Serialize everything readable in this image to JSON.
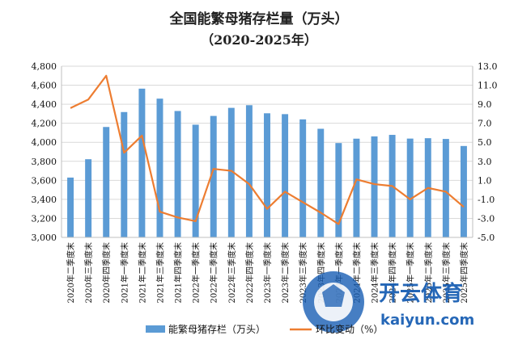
{
  "chart_data": {
    "type": "bar",
    "title": "全国能繁母猪存栏量（万头）",
    "subtitle": "（2020-2025年）",
    "categories": [
      "2020年二季度末",
      "2020年三季度末",
      "2020年四季度末",
      "2021年一季度末",
      "2021年二季度末",
      "2021年三季度末",
      "2021年四季度末",
      "2022年一季度末",
      "2022年二季度末",
      "2022年三季度末",
      "2022年四季度末",
      "2023年一季度末",
      "2023年二季度末",
      "2023年三季度末",
      "2023年四季度末",
      "2024年一季度末",
      "2024年二季度末",
      "2024年三季度末",
      "2024年四季度末",
      "2025年一季度末",
      "2025年二季度末",
      "2025年三季度末",
      "2025年四季度末"
    ],
    "series": [
      {
        "name": "能繁母猪存栏（万头）",
        "type": "bar",
        "axis": "left",
        "color": "#5B9BD5",
        "values": [
          3629,
          3822,
          4161,
          4318,
          4564,
          4459,
          4329,
          4185,
          4277,
          4362,
          4390,
          4305,
          4296,
          4241,
          4142,
          3992,
          4038,
          4062,
          4078,
          4039,
          4043,
          4035,
          3961
        ]
      },
      {
        "name": "环比变动（%）",
        "type": "line",
        "axis": "right",
        "color": "#ED7D31",
        "values": [
          8.6,
          9.5,
          12.0,
          3.9,
          5.7,
          -2.3,
          -2.9,
          -3.3,
          2.2,
          2.0,
          0.6,
          -2.0,
          -0.2,
          -1.3,
          -2.4,
          -3.6,
          1.1,
          0.6,
          0.4,
          -1.0,
          0.2,
          -0.2,
          -1.8
        ]
      }
    ],
    "y_left": {
      "min": 3000,
      "max": 4800,
      "step": 200,
      "ticks": [
        "3,000",
        "3,200",
        "3,400",
        "3,600",
        "3,800",
        "4,000",
        "4,200",
        "4,400",
        "4,600",
        "4,800"
      ]
    },
    "y_right": {
      "min": -5.0,
      "max": 13.0,
      "step": 2.0,
      "ticks": [
        "-5.0",
        "-3.0",
        "-1.0",
        "1.0",
        "3.0",
        "5.0",
        "7.0",
        "9.0",
        "11.0",
        "13.0"
      ]
    },
    "grid": true,
    "legend_position": "bottom"
  },
  "watermark": {
    "brand": "开云体育",
    "url": "kaiyun.com"
  },
  "colors": {
    "bar": "#5B9BD5",
    "line": "#ED7D31",
    "grid": "#D9D9D9",
    "watermark_blue": "#1A5FB4"
  }
}
